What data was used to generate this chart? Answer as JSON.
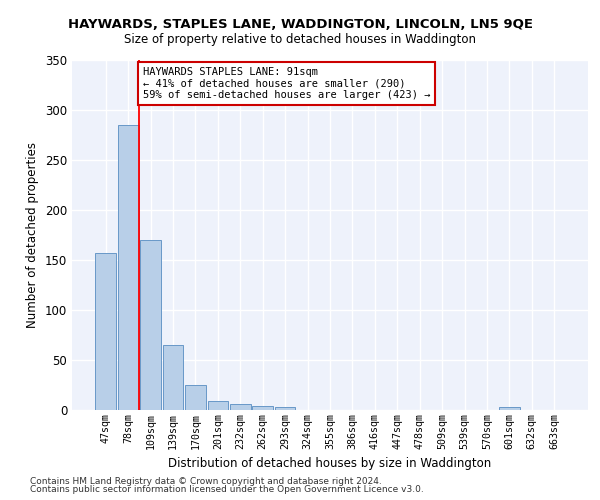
{
  "title": "HAYWARDS, STAPLES LANE, WADDINGTON, LINCOLN, LN5 9QE",
  "subtitle": "Size of property relative to detached houses in Waddington",
  "xlabel": "Distribution of detached houses by size in Waddington",
  "ylabel": "Number of detached properties",
  "bar_color": "#b8cfe8",
  "bar_edge_color": "#6898c8",
  "bar_heights": [
    157,
    285,
    170,
    65,
    25,
    9,
    6,
    4,
    3,
    0,
    0,
    0,
    0,
    0,
    0,
    0,
    0,
    0,
    3,
    0,
    0
  ],
  "x_labels": [
    "47sqm",
    "78sqm",
    "109sqm",
    "139sqm",
    "170sqm",
    "201sqm",
    "232sqm",
    "262sqm",
    "293sqm",
    "324sqm",
    "355sqm",
    "386sqm",
    "416sqm",
    "447sqm",
    "478sqm",
    "509sqm",
    "539sqm",
    "570sqm",
    "601sqm",
    "632sqm",
    "663sqm"
  ],
  "redline_x": 1.5,
  "annotation_text": "HAYWARDS STAPLES LANE: 91sqm\n← 41% of detached houses are smaller (290)\n59% of semi-detached houses are larger (423) →",
  "annotation_box_color": "#ffffff",
  "annotation_box_edge": "#cc0000",
  "ylim": [
    0,
    350
  ],
  "yticks": [
    0,
    50,
    100,
    150,
    200,
    250,
    300,
    350
  ],
  "bg_color": "#eef2fb",
  "grid_color": "#ffffff",
  "footer1": "Contains HM Land Registry data © Crown copyright and database right 2024.",
  "footer2": "Contains public sector information licensed under the Open Government Licence v3.0."
}
